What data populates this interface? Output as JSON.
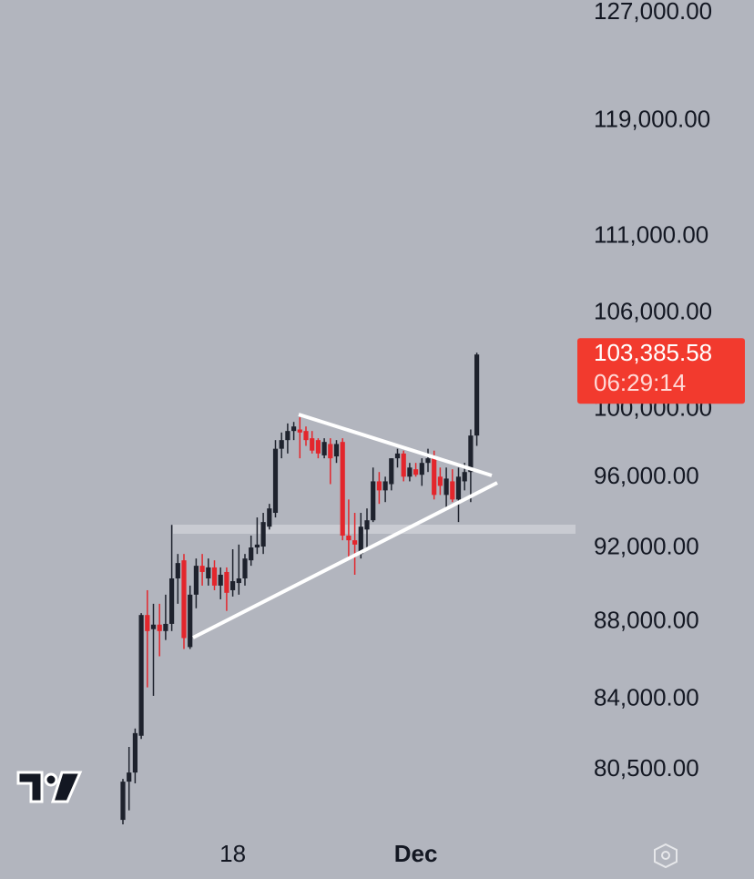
{
  "chart_data": {
    "type": "candlestick",
    "categories": [
      null,
      null,
      null,
      null,
      null,
      null,
      null,
      null,
      null,
      null,
      null,
      null,
      null,
      null,
      null,
      null,
      null,
      null,
      "18",
      null,
      null,
      null,
      null,
      null,
      null,
      null,
      null,
      null,
      null,
      null,
      null,
      null,
      null,
      null,
      null,
      null,
      null,
      null,
      null,
      null,
      null,
      null,
      null,
      null,
      null,
      null,
      null,
      null,
      "Dec",
      null,
      null,
      null,
      null,
      null,
      null,
      null,
      null,
      null,
      null
    ],
    "open": [
      78110,
      79930,
      80370,
      82170,
      88370,
      87620,
      87860,
      87520,
      87900,
      90340,
      91330,
      86680,
      89460,
      91030,
      90340,
      90940,
      89950,
      90690,
      89700,
      90090,
      90340,
      91330,
      92040,
      92090,
      93200,
      93980,
      97680,
      98190,
      98730,
      98820,
      98730,
      98300,
      98190,
      97290,
      97960,
      97230,
      98080,
      92700,
      92440,
      91680,
      93040,
      93560,
      95780,
      95260,
      95620,
      97120,
      97400,
      96050,
      96480,
      96160,
      96850,
      97120,
      96050,
      95000,
      95780,
      94740,
      95780,
      96320,
      98460
    ],
    "high": [
      80060,
      81620,
      82530,
      88470,
      89700,
      88970,
      88970,
      89460,
      93300,
      91680,
      91680,
      89950,
      91430,
      91680,
      91430,
      91330,
      90940,
      90940,
      91940,
      92200,
      91680,
      92700,
      93720,
      93980,
      94490,
      98190,
      98640,
      99180,
      99270,
      99550,
      99000,
      98730,
      98300,
      98300,
      98300,
      98190,
      98300,
      94740,
      93980,
      93980,
      94230,
      96580,
      96320,
      96050,
      97120,
      97680,
      97570,
      96850,
      96850,
      97120,
      97680,
      97570,
      96580,
      96580,
      96480,
      96580,
      96850,
      98820,
      103500
    ],
    "low": [
      77900,
      78560,
      79850,
      82010,
      84600,
      84170,
      86200,
      87050,
      87520,
      88970,
      86580,
      86580,
      88730,
      89950,
      89950,
      89700,
      89210,
      88590,
      89360,
      89460,
      89950,
      91030,
      91680,
      91680,
      93040,
      93720,
      97120,
      97400,
      98190,
      97120,
      97850,
      97400,
      97120,
      97120,
      95620,
      96850,
      92440,
      91430,
      90540,
      91430,
      91940,
      93460,
      94490,
      94590,
      95260,
      96580,
      95780,
      95780,
      96050,
      95520,
      96320,
      94740,
      95000,
      94230,
      94590,
      93460,
      95260,
      94590,
      97850
    ],
    "close": [
      79930,
      80370,
      82300,
      88370,
      87520,
      87860,
      87520,
      87900,
      90340,
      91180,
      87150,
      89460,
      91030,
      90690,
      90940,
      89950,
      90540,
      89560,
      90190,
      90340,
      91430,
      92040,
      92200,
      93460,
      94230,
      97680,
      98190,
      98730,
      99000,
      98640,
      98190,
      97570,
      97400,
      98080,
      97120,
      97960,
      92700,
      92440,
      92200,
      93200,
      93560,
      95780,
      95260,
      95780,
      97120,
      97400,
      96050,
      96580,
      96160,
      96850,
      97120,
      95000,
      95520,
      95940,
      94740,
      96050,
      96320,
      98460,
      103385.58
    ],
    "up_color": "#1e222d",
    "down_color": "#e3262c",
    "log_scale": true,
    "ylim": [
      77900,
      128000
    ],
    "yticks": [
      {
        "value": 80500,
        "label": "80,500.00"
      },
      {
        "value": 84000,
        "label": "84,000.00"
      },
      {
        "value": 88000,
        "label": "88,000.00"
      },
      {
        "value": 92000,
        "label": "92,000.00"
      },
      {
        "value": 96000,
        "label": "96,000.00"
      },
      {
        "value": 100000,
        "label": "100,000.00"
      },
      {
        "value": 106000,
        "label": "106,000.00"
      },
      {
        "value": 111000,
        "label": "111,000.00"
      },
      {
        "value": 119000,
        "label": "119,000.00"
      },
      {
        "value": 127000,
        "label": "127,000.00"
      }
    ],
    "last_price": {
      "value": 103385.58,
      "label": "103,385.58"
    },
    "countdown": "06:29:14",
    "last_price_color": "#f23a2e"
  }
}
